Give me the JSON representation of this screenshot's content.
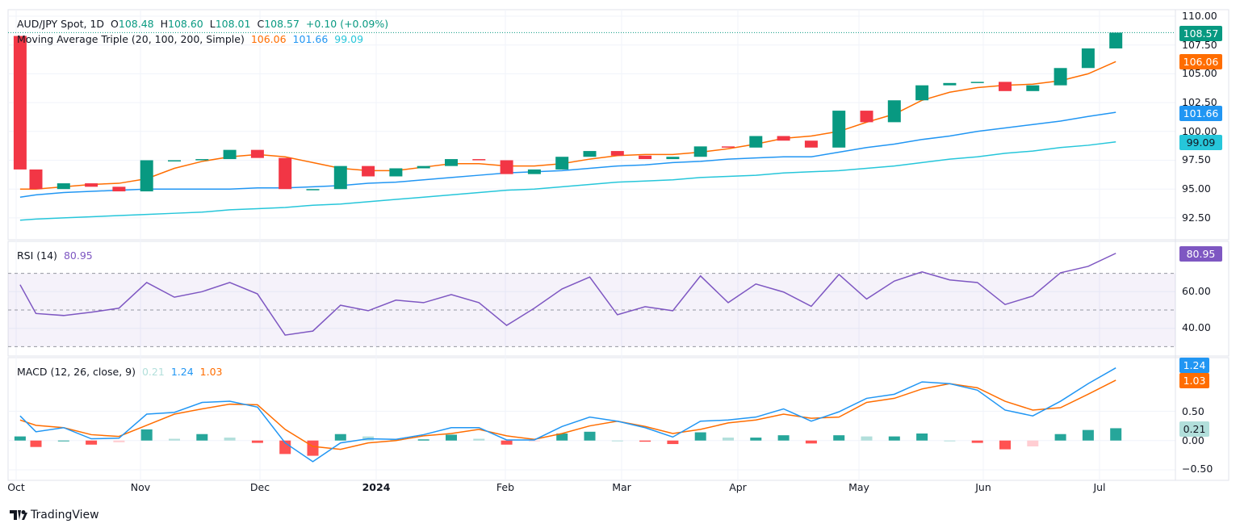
{
  "header": {
    "symbol": "AUD/JPY Spot, 1D",
    "open_label": "O",
    "open": "108.48",
    "high_label": "H",
    "high": "108.60",
    "low_label": "L",
    "low": "108.01",
    "close_label": "C",
    "close": "108.57",
    "change": "+0.10 (+0.09%)"
  },
  "ma_legend": {
    "title": "Moving Average Triple (20, 100, 200, Simple)",
    "ma20": "106.06",
    "ma100": "101.66",
    "ma200": "99.09"
  },
  "rsi_legend": {
    "title": "RSI (14)",
    "value": "80.95"
  },
  "macd_legend": {
    "title": "MACD (12, 26, close, 9)",
    "hist": "0.21",
    "macd": "1.24",
    "signal": "1.03"
  },
  "price_axis": {
    "ticks": [
      "110.00",
      "107.50",
      "105.00",
      "102.50",
      "100.00",
      "97.50",
      "95.00",
      "92.50"
    ],
    "badges": {
      "last": "108.57",
      "ma20": "106.06",
      "ma100": "101.66",
      "ma200": "99.09"
    }
  },
  "rsi_axis": {
    "ticks": [
      "60.00",
      "40.00"
    ],
    "badge": "80.95"
  },
  "macd_axis": {
    "ticks": [
      "0.50",
      "0.00",
      "−0.50"
    ],
    "badges": {
      "macd": "1.24",
      "signal": "1.03",
      "hist": "0.21"
    }
  },
  "time_axis": {
    "labels": [
      "Oct",
      "Nov",
      "Dec",
      "2024",
      "Feb",
      "Mar",
      "Apr",
      "May",
      "Jun",
      "Jul"
    ]
  },
  "branding": {
    "name": "TradingView"
  },
  "colors": {
    "up": "#089981",
    "down": "#f23645",
    "ma20": "#ff6d00",
    "ma100": "#2196f3",
    "ma200": "#26c6da",
    "rsi": "#7e57c2",
    "macd": "#2196f3",
    "signal": "#ff6d00"
  },
  "chart_data": [
    {
      "type": "candlestick",
      "title": "AUD/JPY Spot, 1D",
      "ylim": [
        92.5,
        110
      ],
      "x": [
        "2023-10-02",
        "2023-10-06",
        "2023-10-13",
        "2023-10-20",
        "2023-10-27",
        "2023-11-03",
        "2023-11-10",
        "2023-11-17",
        "2023-11-24",
        "2023-12-01",
        "2023-12-08",
        "2023-12-15",
        "2023-12-22",
        "2023-12-29",
        "2024-01-05",
        "2024-01-12",
        "2024-01-19",
        "2024-01-26",
        "2024-02-02",
        "2024-02-09",
        "2024-02-16",
        "2024-02-23",
        "2024-03-01",
        "2024-03-08",
        "2024-03-15",
        "2024-03-22",
        "2024-03-29",
        "2024-04-05",
        "2024-04-12",
        "2024-04-19",
        "2024-04-26",
        "2024-05-03",
        "2024-05-10",
        "2024-05-17",
        "2024-05-24",
        "2024-05-31",
        "2024-06-07",
        "2024-06-14",
        "2024-06-21",
        "2024-06-28",
        "2024-07-05"
      ],
      "close": [
        96.7,
        95.0,
        95.5,
        95.2,
        94.8,
        97.5,
        97.5,
        97.6,
        98.4,
        97.7,
        95.0,
        95.0,
        97.0,
        96.1,
        96.8,
        97.0,
        97.6,
        97.5,
        96.3,
        96.7,
        97.8,
        98.3,
        97.9,
        97.6,
        97.8,
        98.7,
        98.6,
        99.6,
        99.2,
        98.6,
        101.8,
        100.8,
        102.7,
        104.0,
        104.2,
        104.3,
        103.5,
        104.0,
        105.5,
        107.2,
        108.57
      ],
      "series": [
        {
          "name": "MA 20",
          "values": [
            95.0,
            95.0,
            95.2,
            95.4,
            95.5,
            95.9,
            96.8,
            97.4,
            97.8,
            98.0,
            97.8,
            97.3,
            96.8,
            96.6,
            96.6,
            96.9,
            97.2,
            97.2,
            97.0,
            97.0,
            97.2,
            97.6,
            97.9,
            98.0,
            98.0,
            98.2,
            98.5,
            98.9,
            99.4,
            99.6,
            100.0,
            100.8,
            101.5,
            102.7,
            103.4,
            103.8,
            104.0,
            104.1,
            104.4,
            105.0,
            106.06
          ]
        },
        {
          "name": "MA 100",
          "values": [
            94.3,
            94.5,
            94.7,
            94.8,
            94.9,
            95.0,
            95.0,
            95.0,
            95.0,
            95.1,
            95.1,
            95.2,
            95.3,
            95.5,
            95.6,
            95.8,
            96.0,
            96.2,
            96.4,
            96.5,
            96.6,
            96.8,
            97.0,
            97.1,
            97.3,
            97.4,
            97.6,
            97.7,
            97.8,
            97.8,
            98.2,
            98.6,
            98.9,
            99.3,
            99.6,
            100.0,
            100.3,
            100.6,
            100.9,
            101.3,
            101.66
          ]
        },
        {
          "name": "MA 200",
          "values": [
            92.3,
            92.4,
            92.5,
            92.6,
            92.7,
            92.8,
            92.9,
            93.0,
            93.2,
            93.3,
            93.4,
            93.6,
            93.7,
            93.9,
            94.1,
            94.3,
            94.5,
            94.7,
            94.9,
            95.0,
            95.2,
            95.4,
            95.6,
            95.7,
            95.8,
            96.0,
            96.1,
            96.2,
            96.4,
            96.5,
            96.6,
            96.8,
            97.0,
            97.3,
            97.6,
            97.8,
            98.1,
            98.3,
            98.6,
            98.8,
            99.09
          ]
        }
      ]
    },
    {
      "type": "line",
      "title": "RSI (14)",
      "ylim": [
        25,
        85
      ],
      "bands": [
        30,
        50,
        70
      ],
      "values": [
        63.8,
        48.1,
        47,
        48.8,
        51,
        65,
        57,
        60,
        65,
        58.8,
        36.3,
        38.5,
        52.6,
        49.6,
        55.4,
        54,
        58.4,
        54,
        41.6,
        51,
        61.5,
        68,
        47.4,
        51.8,
        49.6,
        68.6,
        54,
        64.2,
        59.8,
        52,
        69.4,
        56,
        65.8,
        70.8,
        66.4,
        65,
        53,
        57.6,
        70.3,
        73.8,
        80.95
      ]
    },
    {
      "type": "line",
      "title": "MACD (12, 26, close, 9)",
      "ylim": [
        -0.65,
        1.45
      ],
      "series": [
        {
          "name": "MACD",
          "values": [
            0.42,
            0.15,
            0.22,
            0.03,
            0.04,
            0.45,
            0.48,
            0.65,
            0.67,
            0.57,
            -0.04,
            -0.36,
            -0.04,
            0.03,
            0.02,
            0.1,
            0.22,
            0.22,
            0.01,
            0.01,
            0.24,
            0.4,
            0.33,
            0.22,
            0.06,
            0.33,
            0.35,
            0.4,
            0.54,
            0.33,
            0.49,
            0.72,
            0.79,
            1.0,
            0.97,
            0.86,
            0.52,
            0.42,
            0.67,
            0.97,
            1.24
          ]
        },
        {
          "name": "Signal",
          "values": [
            0.35,
            0.26,
            0.22,
            0.1,
            0.07,
            0.26,
            0.45,
            0.54,
            0.62,
            0.61,
            0.19,
            -0.1,
            -0.15,
            -0.04,
            0.0,
            0.08,
            0.12,
            0.19,
            0.08,
            0.02,
            0.12,
            0.25,
            0.33,
            0.24,
            0.12,
            0.19,
            0.3,
            0.35,
            0.45,
            0.38,
            0.4,
            0.65,
            0.72,
            0.88,
            0.97,
            0.9,
            0.67,
            0.52,
            0.56,
            0.79,
            1.03
          ]
        }
      ]
    }
  ]
}
